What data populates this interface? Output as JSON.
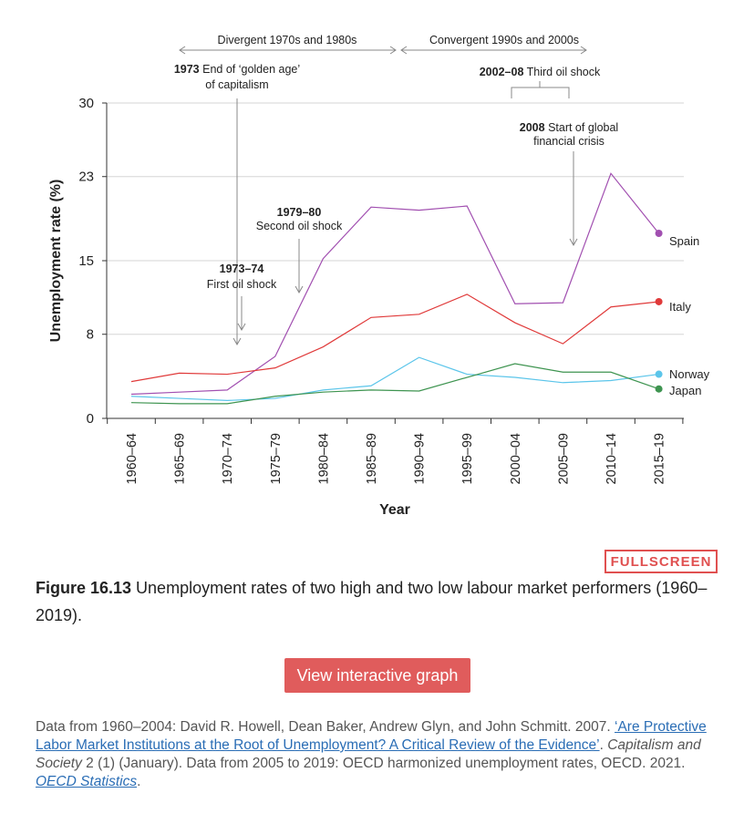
{
  "chart_data": {
    "type": "line",
    "xlabel": "Year",
    "ylabel": "Unemployment rate (%)",
    "categories": [
      "1960–64",
      "1965–69",
      "1970–74",
      "1975–79",
      "1980–84",
      "1985–89",
      "1990–94",
      "1995–99",
      "2000–04",
      "2005–09",
      "2010–14",
      "2015–19"
    ],
    "yticks": [
      0,
      8,
      15,
      23,
      30
    ],
    "ylim": [
      0,
      30
    ],
    "series": [
      {
        "name": "Spain",
        "color": "#a14fb0",
        "marker_color": "#a14fb0",
        "values": [
          2.3,
          2.5,
          2.7,
          5.9,
          15.2,
          20.1,
          19.8,
          20.2,
          10.9,
          11.0,
          23.3,
          17.6
        ]
      },
      {
        "name": "Italy",
        "color": "#e03a3a",
        "marker_color": "#e03a3a",
        "values": [
          3.5,
          4.3,
          4.2,
          4.8,
          6.8,
          9.6,
          9.9,
          11.8,
          9.1,
          7.1,
          10.6,
          11.1
        ]
      },
      {
        "name": "Norway",
        "color": "#5bc5ea",
        "marker_color": "#5bc5ea",
        "values": [
          2.1,
          1.9,
          1.7,
          1.9,
          2.7,
          3.1,
          5.8,
          4.2,
          3.9,
          3.4,
          3.6,
          4.2
        ]
      },
      {
        "name": "Japan",
        "color": "#3e9450",
        "marker_color": "#3e9450",
        "values": [
          1.5,
          1.4,
          1.4,
          2.1,
          2.5,
          2.7,
          2.6,
          3.9,
          5.2,
          4.4,
          4.4,
          2.8
        ]
      }
    ],
    "period_labels": [
      "Divergent 1970s and 1980s",
      "Convergent 1990s and 2000s"
    ],
    "annotations": [
      {
        "bold": "1973",
        "text": " End of ‘golden age’",
        "text2": "of capitalism"
      },
      {
        "bold": "1973–74",
        "text2": "First oil shock"
      },
      {
        "bold": "1979–80",
        "text2": "Second oil shock"
      },
      {
        "bold": "2002–08",
        "text": " Third oil shock"
      },
      {
        "bold": "2008",
        "text": " Start of global",
        "text2": "financial crisis"
      }
    ]
  },
  "fullscreen_label": "FULLSCREEN",
  "caption": {
    "figure_label": "Figure 16.13",
    "text": " Unemployment rates of two high and two low labour market performers (1960–2019)."
  },
  "interactive_button_label": "View interactive graph",
  "source": {
    "part1": "Data from 1960–2004: David R. Howell, Dean Baker, Andrew Glyn, and John Schmitt. 2007. ",
    "link1": "‘Are Protective Labor Market Institutions at the Root of Unemployment? A Critical Review of the Evidence’",
    "part2": ". ",
    "journal": "Capitalism and Society",
    "part3": " 2 (1) (January). Data from 2005 to 2019: OECD harmonized unemployment rates, OECD. 2021. ",
    "link2": "OECD Statistics",
    "part4": "."
  }
}
